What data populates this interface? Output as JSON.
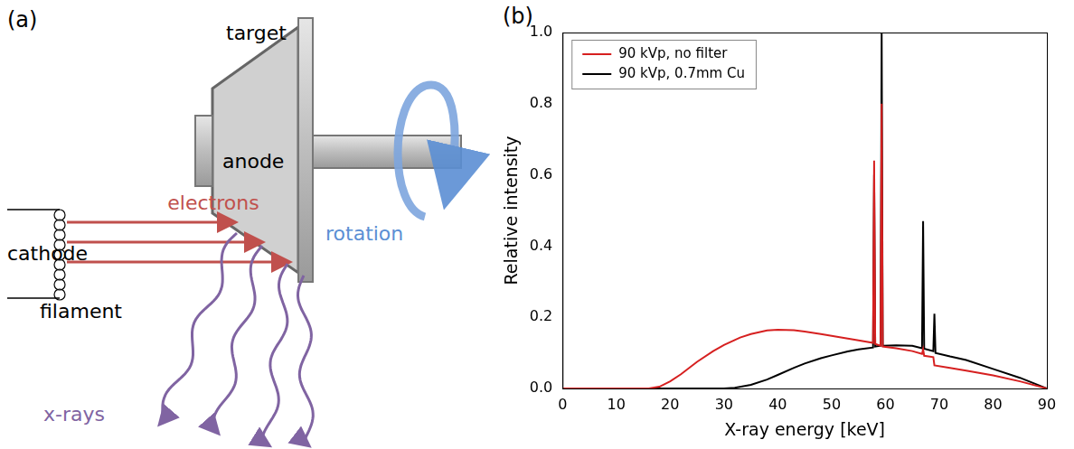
{
  "diagram": {
    "panel_label": "(a)",
    "labels": {
      "target": "target",
      "anode": "anode",
      "electrons": "electrons",
      "rotation": "rotation",
      "cathode": "cathode",
      "filament": "filament",
      "xrays": "x-rays"
    }
  },
  "chart_data": {
    "type": "line",
    "panel_label": "(b)",
    "x_label": "X-ray energy [keV]",
    "y_label": "Relative intensity",
    "xlim": [
      0,
      90
    ],
    "xticks": [
      0,
      10,
      20,
      30,
      40,
      50,
      60,
      70,
      80,
      90
    ],
    "ylim": [
      0,
      1
    ],
    "yticks": [
      {
        "value": 0,
        "label": "0.0"
      },
      0.2,
      0.4,
      0.6,
      0.8,
      {
        "value": 1,
        "label": "1.0"
      }
    ],
    "grid": false,
    "legend": "upper left",
    "series": [
      {
        "name": "90 kVp, no filter",
        "color": "#d62020",
        "x": [
          0,
          10,
          16,
          18,
          20,
          22,
          25,
          28,
          30,
          33,
          35,
          38,
          40,
          43,
          45,
          48,
          50,
          53,
          55,
          57.7,
          57.9,
          58.1,
          59.1,
          59.3,
          59.5,
          62,
          65,
          66.8,
          67.0,
          67.2,
          68.9,
          69.1,
          72,
          75,
          80,
          85,
          90
        ],
        "values": [
          0,
          0,
          0,
          0.005,
          0.02,
          0.04,
          0.075,
          0.105,
          0.122,
          0.143,
          0.153,
          0.163,
          0.165,
          0.164,
          0.16,
          0.153,
          0.148,
          0.14,
          0.135,
          0.128,
          0.64,
          0.125,
          0.12,
          0.8,
          0.118,
          0.113,
          0.105,
          0.097,
          0.11,
          0.092,
          0.088,
          0.065,
          0.058,
          0.05,
          0.037,
          0.02,
          0
        ]
      },
      {
        "name": "90 kVp, 0.7mm Cu",
        "color": "#000000",
        "x": [
          0,
          10,
          20,
          30,
          32,
          35,
          38,
          40,
          43,
          45,
          48,
          50,
          53,
          55,
          57.7,
          57.9,
          58.1,
          59.1,
          59.3,
          59.5,
          62,
          65,
          66.8,
          67.0,
          67.2,
          68.9,
          69.1,
          69.3,
          72,
          75,
          80,
          85,
          90
        ],
        "values": [
          0,
          0,
          0,
          0,
          0.002,
          0.01,
          0.025,
          0.038,
          0.058,
          0.07,
          0.085,
          0.093,
          0.104,
          0.11,
          0.115,
          0.6,
          0.118,
          0.12,
          1.0,
          0.12,
          0.121,
          0.12,
          0.113,
          0.47,
          0.112,
          0.105,
          0.21,
          0.1,
          0.09,
          0.08,
          0.055,
          0.03,
          0
        ]
      }
    ]
  }
}
